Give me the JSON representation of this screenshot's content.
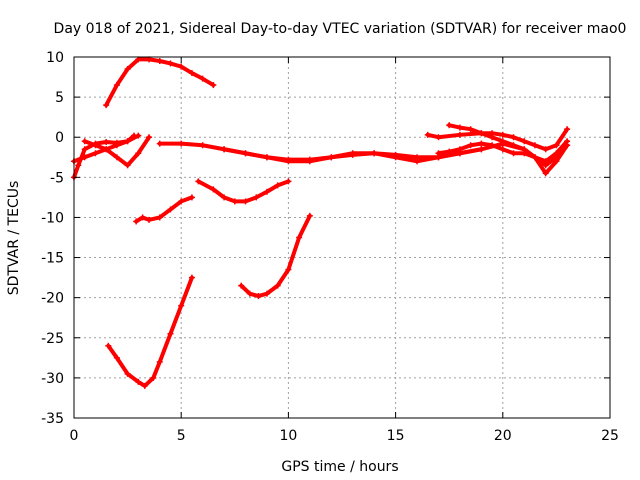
{
  "chart_data": {
    "type": "scatter",
    "title": "Day 018 of 2021, Sidereal Day-to-day VTEC variation (SDTVAR) for receiver mao0",
    "xlabel": "GPS time / hours",
    "ylabel": "SDTVAR / TECUs",
    "xlim": [
      0,
      25
    ],
    "ylim": [
      -35,
      10
    ],
    "xticks": [
      0,
      5,
      10,
      15,
      20,
      25
    ],
    "yticks": [
      -35,
      -30,
      -25,
      -20,
      -15,
      -10,
      -5,
      0,
      5,
      10
    ],
    "grid": true,
    "marker_color": "#ff0000",
    "series": [
      {
        "x": [
          1.5,
          2.0,
          2.5,
          3.0,
          3.5,
          4.0,
          4.5,
          5.0,
          5.5,
          6.0,
          6.5
        ],
        "y": [
          4,
          6.5,
          8.5,
          9.7,
          9.7,
          9.5,
          9.2,
          8.8,
          8.0,
          7.3,
          6.5
        ]
      },
      {
        "x": [
          0.0,
          0.2,
          0.5,
          1.0,
          1.5,
          2.0,
          2.5,
          2.8
        ],
        "y": [
          -5.0,
          -3.5,
          -1.5,
          -0.8,
          -0.6,
          -0.7,
          -0.5,
          0.2
        ]
      },
      {
        "x": [
          0.0,
          0.5,
          1.0,
          1.5,
          2.0,
          2.5,
          3.0
        ],
        "y": [
          -3.0,
          -2.5,
          -2.0,
          -1.5,
          -1.0,
          -0.5,
          0.2
        ]
      },
      {
        "x": [
          0.5,
          1.0,
          1.5,
          2.0,
          2.5,
          3.0,
          3.5
        ],
        "y": [
          -0.5,
          -1.0,
          -1.5,
          -2.5,
          -3.5,
          -2.0,
          0.0
        ]
      },
      {
        "x": [
          4.0,
          5.0,
          6.0,
          7.0,
          8.0,
          9.0,
          10.0,
          11.0,
          12.0,
          13.0,
          14.0,
          15.0,
          16.0,
          17.0,
          18.0,
          19.0,
          20.0,
          21.0,
          22.0,
          22.5,
          23.0
        ],
        "y": [
          -0.8,
          -0.8,
          -1.0,
          -1.5,
          -2.0,
          -2.5,
          -2.8,
          -2.8,
          -2.5,
          -2.2,
          -2.0,
          -2.2,
          -2.5,
          -2.5,
          -2.0,
          -1.5,
          -0.8,
          -1.5,
          -3.5,
          -2.5,
          -1.0
        ]
      },
      {
        "x": [
          7.0,
          8.0,
          9.0,
          10.0,
          11.0,
          12.0,
          13.0,
          14.0,
          15.0,
          16.0,
          17.0,
          18.0,
          19.0
        ],
        "y": [
          -1.5,
          -2.0,
          -2.5,
          -3.0,
          -3.0,
          -2.5,
          -2.0,
          -2.0,
          -2.5,
          -3.0,
          -2.5,
          -2.0,
          -1.5
        ]
      },
      {
        "x": [
          16.5,
          17.0,
          18.0,
          19.0,
          19.5,
          20.0,
          20.5,
          21.0,
          21.5,
          22.0,
          22.5,
          23.0
        ],
        "y": [
          0.3,
          0.0,
          0.3,
          0.5,
          0.5,
          0.3,
          0.0,
          -0.5,
          -1.0,
          -1.5,
          -1.0,
          1.0
        ]
      },
      {
        "x": [
          17.5,
          18.0,
          18.5,
          19.0,
          19.5,
          20.0,
          20.5,
          21.0,
          21.5,
          22.0,
          22.5,
          23.0
        ],
        "y": [
          1.5,
          1.2,
          1.0,
          0.5,
          0.0,
          -0.5,
          -1.0,
          -1.5,
          -2.5,
          -4.5,
          -3.0,
          -1.0
        ]
      },
      {
        "x": [
          17.0,
          17.5,
          18.0,
          18.5,
          19.0,
          19.5,
          20.0,
          20.5,
          21.0,
          21.5,
          22.0,
          22.5,
          23.0
        ],
        "y": [
          -2.0,
          -1.8,
          -1.5,
          -1.0,
          -0.8,
          -1.0,
          -1.5,
          -2.0,
          -2.0,
          -2.5,
          -3.0,
          -2.0,
          -0.5
        ]
      },
      {
        "x": [
          2.9,
          3.2,
          3.5,
          4.0,
          4.5,
          5.0,
          5.5
        ],
        "y": [
          -10.5,
          -10.0,
          -10.3,
          -10.0,
          -9.0,
          -8.0,
          -7.5
        ]
      },
      {
        "x": [
          5.8,
          6.5,
          7.0,
          7.5,
          8.0,
          8.5,
          9.0,
          9.5,
          10.0
        ],
        "y": [
          -5.5,
          -6.5,
          -7.5,
          -8.0,
          -8.0,
          -7.5,
          -6.8,
          -6.0,
          -5.5
        ]
      },
      {
        "x": [
          1.6,
          2.0,
          2.5,
          3.0,
          3.3,
          3.7,
          4.0,
          4.5,
          5.0,
          5.5
        ],
        "y": [
          -26.0,
          -27.5,
          -29.5,
          -30.5,
          -31.0,
          -30.0,
          -28.0,
          -24.5,
          -21.0,
          -17.5
        ]
      },
      {
        "x": [
          7.8,
          8.2,
          8.6,
          9.0,
          9.5,
          10.0,
          10.5,
          11.0
        ],
        "y": [
          -18.5,
          -19.5,
          -19.8,
          -19.5,
          -18.5,
          -16.5,
          -12.5,
          -9.8
        ]
      }
    ]
  }
}
